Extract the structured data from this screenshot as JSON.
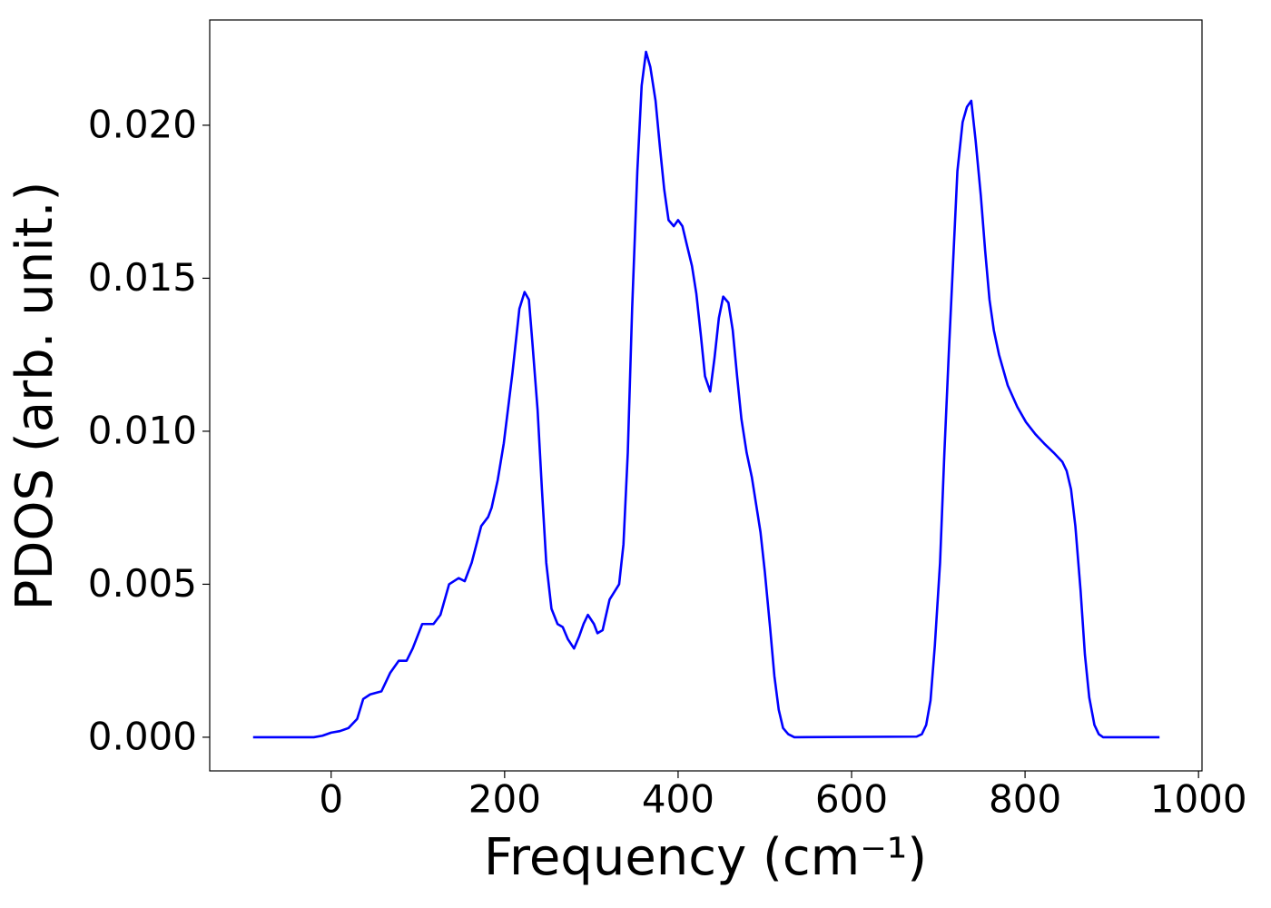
{
  "chart_data": {
    "type": "line",
    "xlabel": "Frequency (cm⁻¹)",
    "ylabel": "PDOS (arb. unit.)",
    "xlim": [
      -140,
      1004
    ],
    "ylim": [
      -0.0011,
      0.02344
    ],
    "xticks": [
      0,
      200,
      400,
      600,
      800,
      1000
    ],
    "yticks": [
      {
        "value": 0,
        "label": "0.000"
      },
      {
        "value": 0.005,
        "label": "0.005"
      },
      {
        "value": 0.01,
        "label": "0.010"
      },
      {
        "value": 0.015,
        "label": "0.015"
      },
      {
        "value": 0.02,
        "label": "0.020"
      }
    ],
    "grid": false,
    "series": [
      {
        "color": "#0000ff",
        "x": [
          -90,
          -20,
          -10,
          0,
          10,
          20,
          30,
          37,
          45,
          58,
          68,
          78,
          87,
          94,
          105,
          118,
          126,
          136,
          147,
          154,
          162,
          173,
          181,
          185,
          192,
          199,
          209,
          217,
          223,
          228,
          232,
          238,
          243,
          248,
          254,
          261,
          267,
          273,
          280,
          286,
          291,
          296,
          303,
          307,
          313,
          321,
          332,
          337,
          342,
          347,
          353,
          358,
          363,
          368,
          374,
          379,
          384,
          389,
          395,
          400,
          405,
          410,
          416,
          421,
          426,
          431,
          437,
          442,
          447,
          452,
          458,
          463,
          468,
          473,
          479,
          485,
          490,
          495,
          500,
          506,
          511,
          516,
          521,
          527,
          534,
          675,
          681,
          686,
          691,
          696,
          702,
          707,
          712,
          717,
          722,
          728,
          733,
          738,
          743,
          749,
          754,
          759,
          764,
          770,
          780,
          791,
          801,
          812,
          822,
          833,
          843,
          848,
          853,
          858,
          864,
          869,
          874,
          880,
          885,
          890,
          955
        ],
        "values": [
          0,
          0,
          5e-05,
          0.00015,
          0.0002,
          0.0003,
          0.0006,
          0.00125,
          0.0014,
          0.0015,
          0.0021,
          0.0025,
          0.0025,
          0.0029,
          0.0037,
          0.0037,
          0.004,
          0.005,
          0.0052,
          0.0051,
          0.0057,
          0.0069,
          0.0072,
          0.0075,
          0.0084,
          0.0096,
          0.0119,
          0.014,
          0.01455,
          0.0143,
          0.0129,
          0.0107,
          0.0081,
          0.0057,
          0.0042,
          0.0037,
          0.0036,
          0.0032,
          0.0029,
          0.0033,
          0.0037,
          0.004,
          0.0037,
          0.0034,
          0.0035,
          0.0045,
          0.005,
          0.0063,
          0.0093,
          0.014,
          0.0185,
          0.0213,
          0.0224,
          0.0219,
          0.0208,
          0.0193,
          0.0179,
          0.0169,
          0.0167,
          0.0169,
          0.0167,
          0.0161,
          0.0154,
          0.0145,
          0.0132,
          0.0118,
          0.0113,
          0.0124,
          0.0137,
          0.0144,
          0.0142,
          0.0133,
          0.0118,
          0.0104,
          0.0093,
          0.0085,
          0.0076,
          0.0067,
          0.0054,
          0.0036,
          0.002,
          0.0009,
          0.0003,
          0.0001,
          0,
          2e-05,
          0.0001,
          0.0004,
          0.0012,
          0.003,
          0.0057,
          0.0093,
          0.0125,
          0.0155,
          0.0185,
          0.0201,
          0.0206,
          0.0208,
          0.0195,
          0.0177,
          0.0159,
          0.0143,
          0.0133,
          0.0125,
          0.0115,
          0.0108,
          0.0103,
          0.0099,
          0.0096,
          0.0093,
          0.009,
          0.0087,
          0.0081,
          0.0069,
          0.0048,
          0.0027,
          0.0013,
          0.0004,
          0.0001,
          0,
          0
        ]
      }
    ]
  }
}
